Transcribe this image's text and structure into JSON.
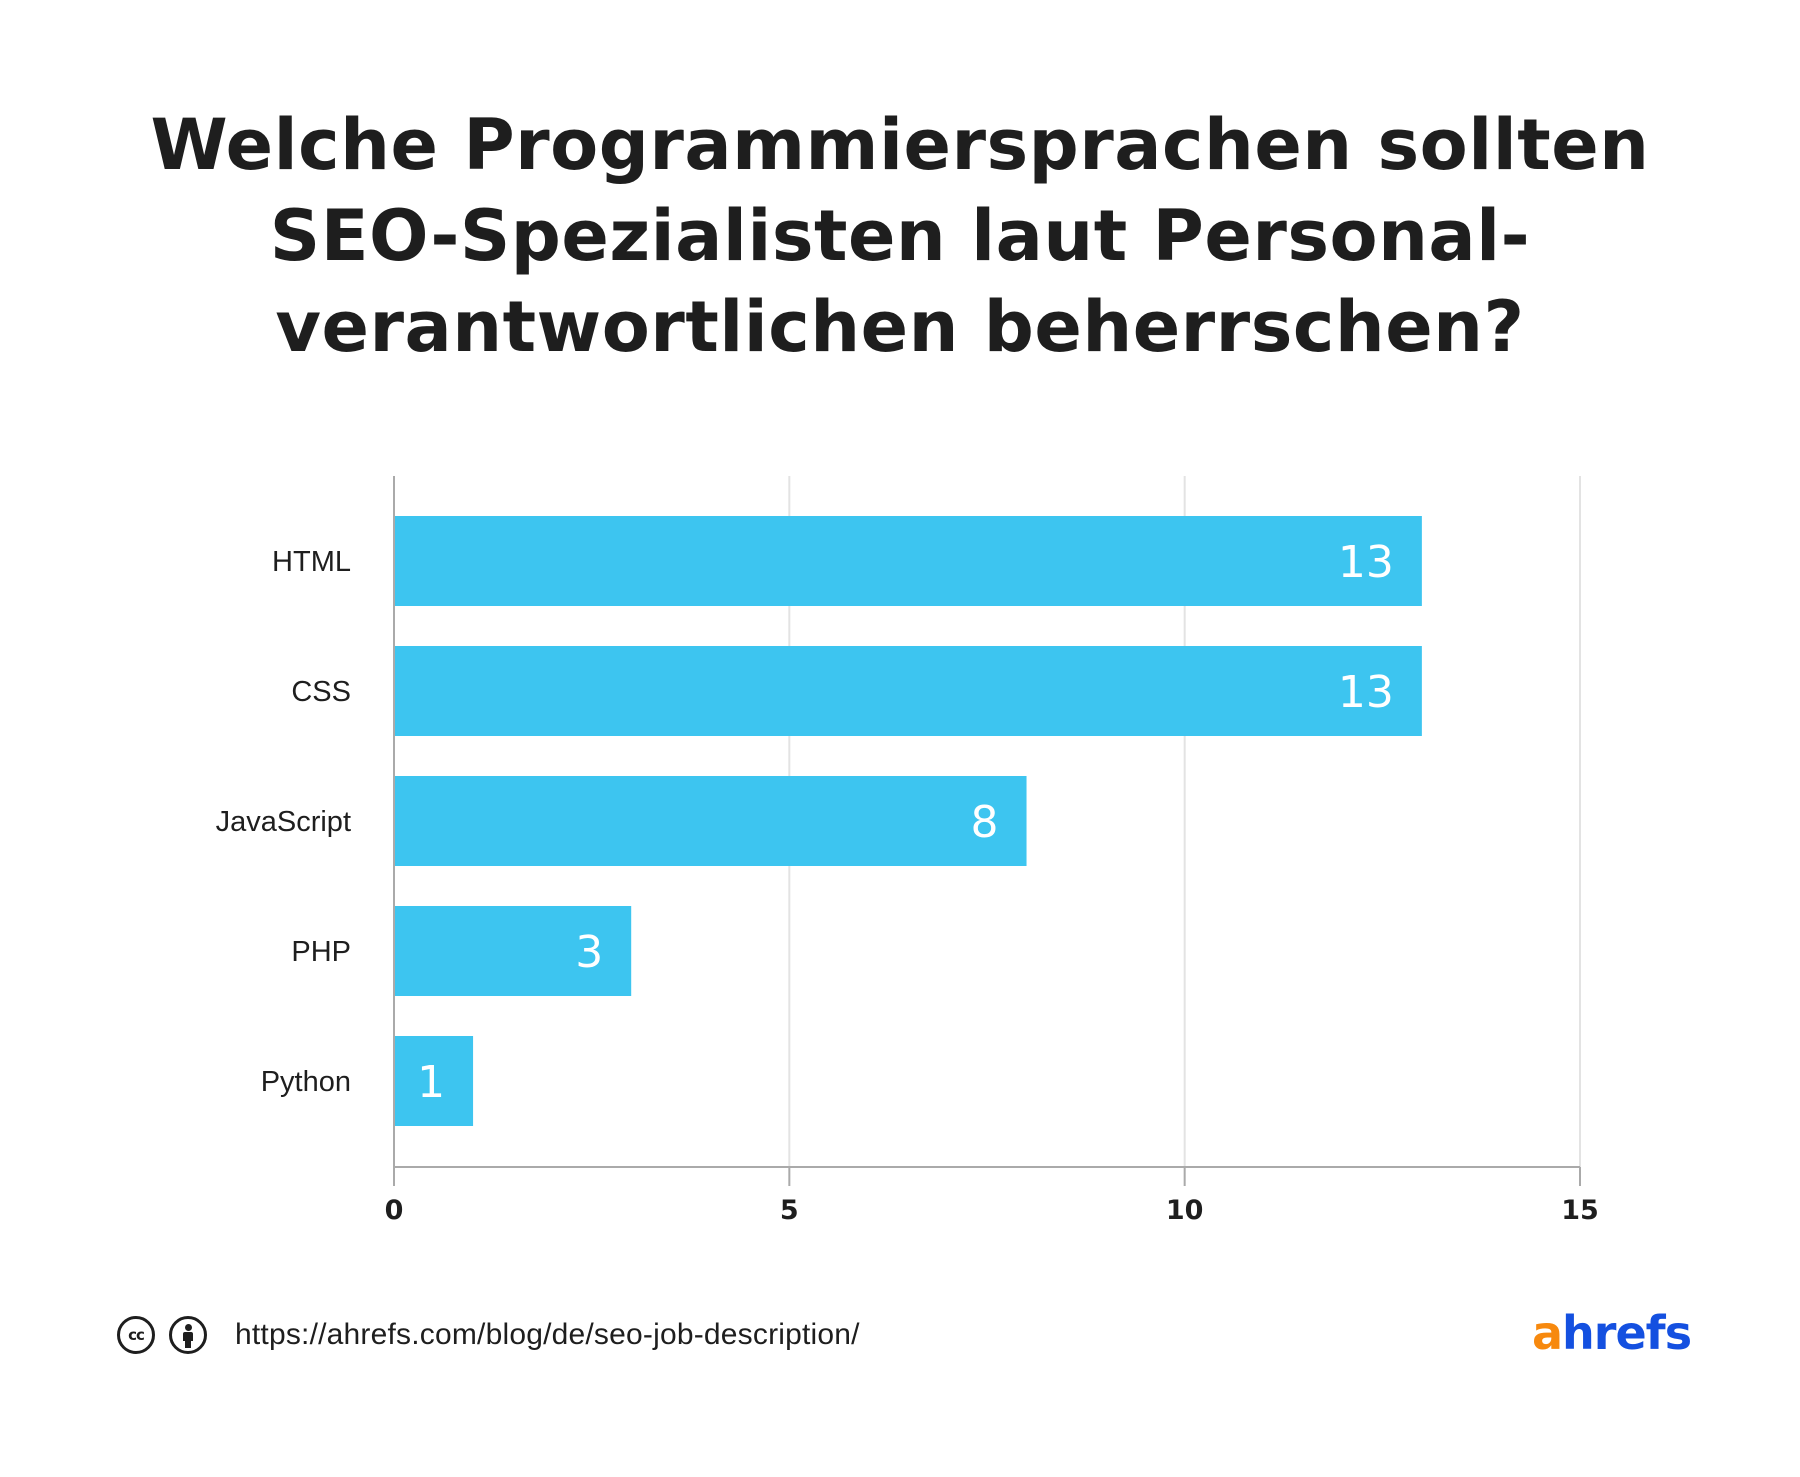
{
  "title_lines": [
    "Welche Programmiersprachen sollten",
    "SEO-Spezialisten laut Personal-",
    "verantwortlichen beherrschen?"
  ],
  "colors": {
    "bar": "#3dc5f0",
    "axis": "#aaaaaa",
    "grid": "#e3e3e3",
    "text": "#1e1e1e",
    "logo_orange": "#f7890e",
    "logo_blue": "#1450e0"
  },
  "chart_data": {
    "type": "bar",
    "orientation": "horizontal",
    "title": "Welche Programmiersprachen sollten SEO-Spezialisten laut Personalverantwortlichen beherrschen?",
    "categories": [
      "HTML",
      "CSS",
      "JavaScript",
      "PHP",
      "Python"
    ],
    "values": [
      13,
      13,
      8,
      3,
      1
    ],
    "data_labels": [
      "13",
      "13",
      "8",
      "3",
      "1"
    ],
    "xlabel": "",
    "ylabel": "",
    "xlim": [
      0,
      15
    ],
    "xticks": [
      0,
      5,
      10,
      15
    ],
    "xtick_labels": [
      "0",
      "5",
      "10",
      "15"
    ],
    "grid": "vertical",
    "legend": "none"
  },
  "footer": {
    "license_icons": [
      "cc-icon",
      "by-icon"
    ],
    "cc_text": "cc",
    "url": "https://ahrefs.com/blog/de/seo-job-description/"
  },
  "logo": {
    "first": "a",
    "rest": "hrefs"
  }
}
